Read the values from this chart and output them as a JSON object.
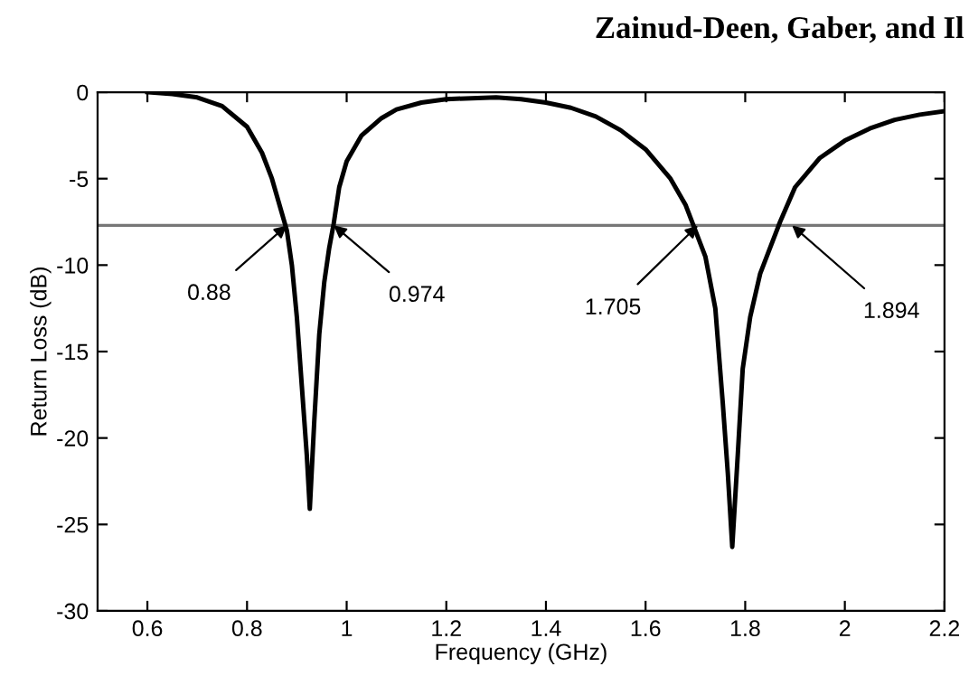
{
  "chart_data": {
    "type": "line",
    "xlabel": "Frequency (GHz)",
    "ylabel": "Return Loss (dB)",
    "annotations": [
      "Zainud-Deen, Gaber, and Il",
      {
        "text": "0.88",
        "x": 0.88,
        "y": -7.7
      },
      {
        "text": "0.974",
        "x": 0.974,
        "y": -7.7
      },
      {
        "text": "1.705",
        "x": 1.705,
        "y": -7.7
      },
      {
        "text": "1.894",
        "x": 1.894,
        "y": -7.7
      }
    ],
    "series": [
      {
        "color": "#000000",
        "x": [
          0.6,
          0.65,
          0.7,
          0.75,
          0.8,
          0.83,
          0.85,
          0.87,
          0.88,
          0.89,
          0.9,
          0.91,
          0.92,
          0.926,
          0.935,
          0.945,
          0.955,
          0.965,
          0.974,
          0.985,
          1.0,
          1.03,
          1.07,
          1.1,
          1.15,
          1.2,
          1.3,
          1.35,
          1.4,
          1.45,
          1.5,
          1.55,
          1.6,
          1.65,
          1.68,
          1.7,
          1.72,
          1.74,
          1.755,
          1.765,
          1.774,
          1.785,
          1.795,
          1.81,
          1.83,
          1.85,
          1.87,
          1.9,
          1.95,
          2.0,
          2.05,
          2.1,
          2.15,
          2.2
        ],
        "values": [
          0,
          -0.1,
          -0.3,
          -0.8,
          -2.0,
          -3.5,
          -5.0,
          -7.0,
          -8.0,
          -10,
          -13,
          -17,
          -21,
          -24.1,
          -19,
          -14,
          -11,
          -9,
          -7.6,
          -5.5,
          -4,
          -2.5,
          -1.5,
          -1.0,
          -0.6,
          -0.4,
          -0.3,
          -0.4,
          -0.6,
          -0.9,
          -1.4,
          -2.2,
          -3.3,
          -5.0,
          -6.5,
          -8.0,
          -9.5,
          -12.5,
          -18,
          -22,
          -26.3,
          -21,
          -16,
          -13,
          -10.5,
          -9,
          -7.5,
          -5.5,
          -3.8,
          -2.8,
          -2.1,
          -1.6,
          -1.3,
          -1.1
        ]
      }
    ],
    "ref_lines": [
      {
        "axis": "y",
        "value": -7.7,
        "color": "#777777"
      }
    ],
    "xlim": [
      0.5,
      2.2
    ],
    "xticks": [
      0.6,
      0.8,
      1,
      1.2,
      1.4,
      1.6,
      1.8,
      2,
      2.2
    ],
    "ylim": [
      -30,
      0
    ],
    "yticks": [
      {
        "value": -30,
        "label": "-30"
      },
      {
        "value": -25,
        "label": "-25"
      },
      {
        "value": -20,
        "label": "-20"
      },
      {
        "value": -15,
        "label": "-15"
      },
      {
        "value": -10,
        "label": "-10"
      },
      {
        "value": -5,
        "label": "-5"
      },
      0
    ],
    "grid": false,
    "legend": false,
    "marker": "none",
    "line_style": "solid"
  }
}
